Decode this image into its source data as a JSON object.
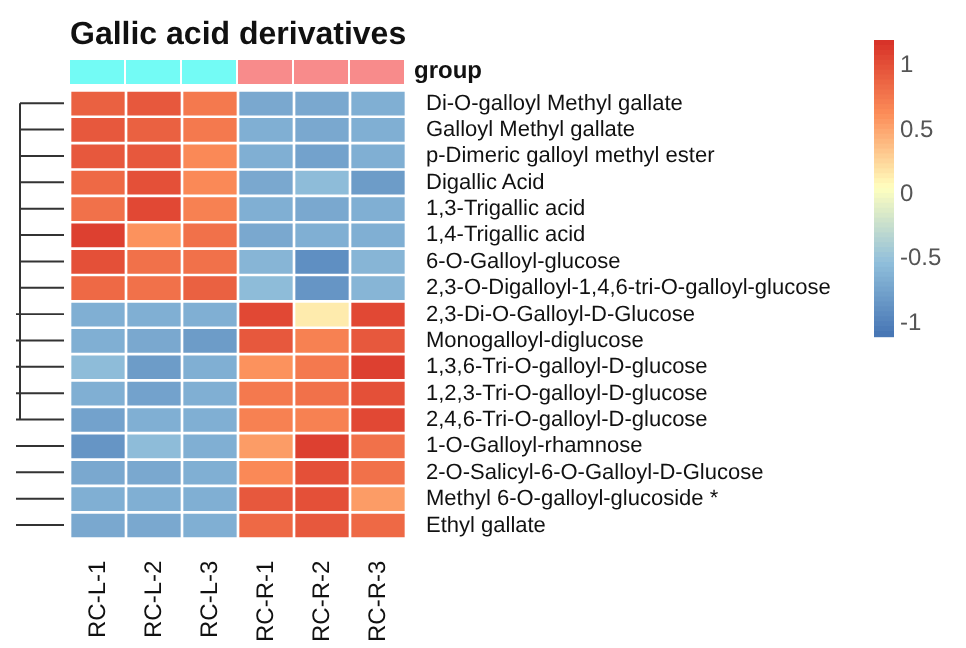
{
  "chart_data": {
    "type": "heatmap",
    "title": "Gallic acid derivatives",
    "categories": [
      "RC-L-1",
      "RC-L-2",
      "RC-L-3",
      "RC-R-1",
      "RC-R-2",
      "RC-R-3"
    ],
    "y_categories": [
      "Di-O-galloyl Methyl gallate",
      "Galloyl Methyl gallate",
      "p-Dimeric galloyl methyl ester",
      "Digallic Acid",
      "1,3-Trigallic acid",
      "1,4-Trigallic acid",
      "6-O-Galloyl-glucose",
      "2,3-O-Digalloyl-1,4,6-tri-O-galloyl-glucose",
      "2,3-Di-O-Galloyl-D-Glucose",
      "Monogalloyl-diglucose",
      "1,3,6-Tri-O-galloyl-D-glucose",
      "1,2,3-Tri-O-galloyl-D-glucose",
      "2,4,6-Tri-O-galloyl-D-glucose",
      "1-O-Galloyl-rhamnose",
      "2-O-Salicyl-6-O-Galloyl-D-Glucose",
      "Methyl 6-O-galloyl-glucoside *",
      "Ethyl gallate"
    ],
    "cells": [
      [
        0.9,
        0.95,
        0.75,
        -0.7,
        -0.7,
        -0.65
      ],
      [
        0.95,
        0.9,
        0.75,
        -0.65,
        -0.7,
        -0.65
      ],
      [
        0.95,
        0.95,
        0.65,
        -0.65,
        -0.75,
        -0.65
      ],
      [
        0.85,
        1.0,
        0.65,
        -0.7,
        -0.55,
        -0.8
      ],
      [
        0.8,
        1.05,
        0.7,
        -0.65,
        -0.7,
        -0.65
      ],
      [
        1.1,
        0.6,
        0.8,
        -0.7,
        -0.65,
        -0.65
      ],
      [
        1.0,
        0.8,
        0.8,
        -0.6,
        -0.9,
        -0.6
      ],
      [
        0.85,
        0.8,
        0.9,
        -0.55,
        -0.85,
        -0.6
      ],
      [
        -0.65,
        -0.65,
        -0.65,
        1.05,
        0.15,
        1.05
      ],
      [
        -0.65,
        -0.7,
        -0.8,
        0.95,
        0.7,
        0.95
      ],
      [
        -0.55,
        -0.8,
        -0.65,
        0.6,
        0.75,
        1.1
      ],
      [
        -0.65,
        -0.75,
        -0.65,
        0.75,
        0.8,
        1.0
      ],
      [
        -0.75,
        -0.65,
        -0.65,
        0.7,
        0.7,
        1.05
      ],
      [
        -0.85,
        -0.55,
        -0.65,
        0.55,
        1.1,
        0.8
      ],
      [
        -0.7,
        -0.7,
        -0.65,
        0.65,
        1.0,
        0.8
      ],
      [
        -0.65,
        -0.65,
        -0.65,
        0.95,
        1.0,
        0.55
      ],
      [
        -0.7,
        -0.7,
        -0.65,
        0.85,
        0.95,
        0.85
      ]
    ],
    "clim": [
      -1.1,
      1.2
    ],
    "cticks": [
      -1,
      -0.5,
      0,
      0.5,
      1
    ],
    "annotations": [
      "group"
    ]
  }
}
